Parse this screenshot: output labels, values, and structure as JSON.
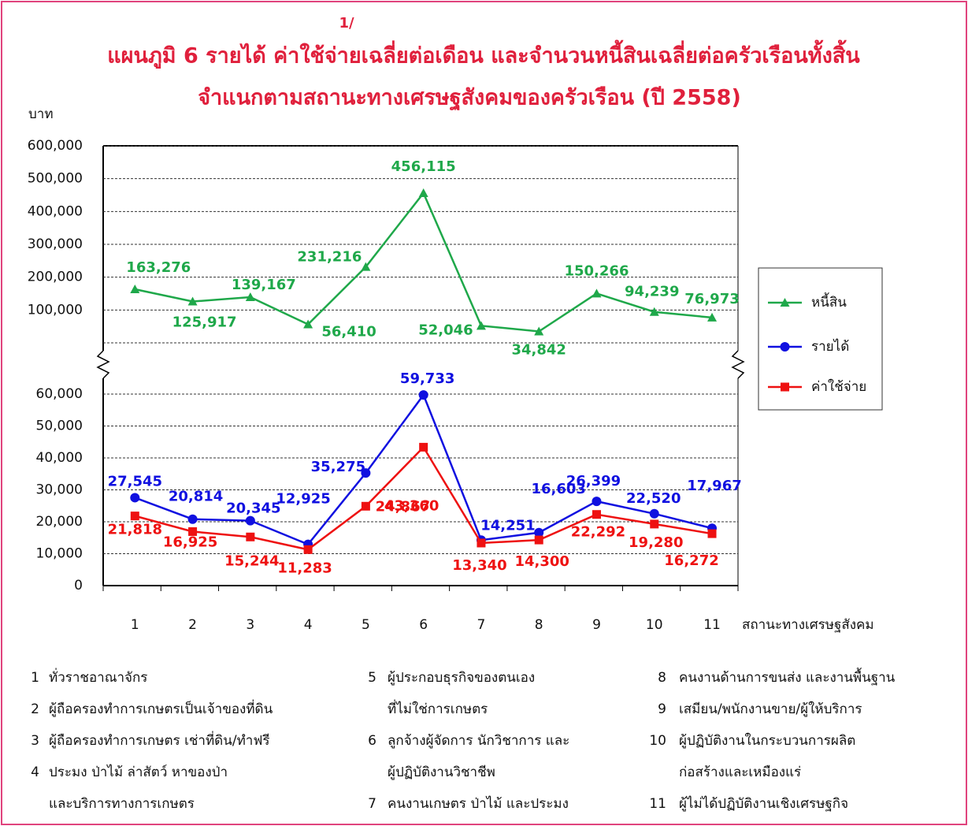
{
  "footnote_mark": "1/",
  "title": [
    "แผนภูมิ  6  รายได้  ค่าใช้จ่ายเฉลี่ยต่อเดือน  และจำนวนหนี้สินเฉลี่ยต่อครัวเรือนทั้งสิ้น",
    "จำแนกตามสถานะทางเศรษฐสังคมของครัวเรือน (ปี 2558)"
  ],
  "y_unit": "บาท",
  "x_label": "สถานะทางเศรษฐสังคม",
  "chart_data": [
    {
      "type": "line",
      "ylim": [
        0,
        600000
      ],
      "yticks": [
        {
          "value": 100000,
          "label": "100,000"
        },
        {
          "value": 200000,
          "label": "200,000"
        },
        {
          "value": 300000,
          "label": "300,000"
        },
        {
          "value": 400000,
          "label": "400,000"
        },
        {
          "value": 500000,
          "label": "500,000"
        },
        {
          "value": 600000,
          "label": "600,000"
        }
      ],
      "grid": true,
      "series": [
        {
          "name": "หนี้สิน",
          "color": "#1fa84a",
          "marker": "triangle",
          "values": [
            163276,
            125917,
            139167,
            56410,
            231216,
            456115,
            52046,
            34842,
            150266,
            94239,
            76973
          ],
          "value_labels": [
            "163,276",
            "125,917",
            "139,167",
            "56,410",
            "231,216",
            "456,115",
            "52,046",
            "34,842",
            "150,266",
            "94,239",
            "76,973"
          ]
        }
      ]
    },
    {
      "type": "line",
      "categories": [
        "1",
        "2",
        "3",
        "4",
        "5",
        "6",
        "7",
        "8",
        "9",
        "10",
        "11"
      ],
      "ylim": [
        0,
        60000
      ],
      "yticks": [
        0,
        {
          "value": 10000,
          "label": "10,000"
        },
        {
          "value": 20000,
          "label": "20,000"
        },
        {
          "value": 30000,
          "label": "30,000"
        },
        {
          "value": 40000,
          "label": "40,000"
        },
        {
          "value": 50000,
          "label": "50,000"
        },
        {
          "value": 60000,
          "label": "60,000"
        }
      ],
      "grid": true,
      "series": [
        {
          "name": "รายได้",
          "color": "#1010e0",
          "marker": "circle",
          "values": [
            27545,
            20814,
            20345,
            12925,
            35275,
            59733,
            14251,
            16603,
            26399,
            22520,
            17967
          ],
          "value_labels": [
            "27,545",
            "20,814",
            "20,345",
            "12,925",
            "35,275",
            "59,733",
            "14,251",
            "16,603",
            "26,399",
            "22,520",
            "17,967"
          ]
        },
        {
          "name": "ค่าใช้จ่าย",
          "color": "#ee1111",
          "marker": "square",
          "values": [
            21818,
            16925,
            15244,
            11283,
            24867,
            43360,
            13340,
            14300,
            22292,
            19280,
            16272
          ],
          "value_labels": [
            "21,818",
            "16,925",
            "15,244",
            "11,283",
            "24,867",
            "43,360",
            "13,340",
            "14,300",
            "22,292",
            "19,280",
            "16,272"
          ]
        }
      ]
    }
  ],
  "notes": [
    {
      "num": "1",
      "lines": [
        "ทั่วราชอาณาจักร"
      ]
    },
    {
      "num": "2",
      "lines": [
        "ผู้ถือครองทำการเกษตรเป็นเจ้าของที่ดิน"
      ]
    },
    {
      "num": "3",
      "lines": [
        "ผู้ถือครองทำการเกษตร เช่าที่ดิน/ทำฟรี"
      ]
    },
    {
      "num": "4",
      "lines": [
        "ประมง ป่าไม้ ล่าสัตว์ หาของป่า",
        "และบริการทางการเกษตร"
      ]
    },
    {
      "num": "5",
      "lines": [
        "ผู้ประกอบธุรกิจของตนเอง",
        "ที่ไม่ใช่การเกษตร"
      ]
    },
    {
      "num": "6",
      "lines": [
        "ลูกจ้างผู้จัดการ นักวิชาการ และ",
        "ผู้ปฏิบัติงานวิชาชีพ"
      ]
    },
    {
      "num": "7",
      "lines": [
        "คนงานเกษตร ป่าไม้ และประมง"
      ]
    },
    {
      "num": "8",
      "lines": [
        "คนงานด้านการขนส่ง และงานพื้นฐาน"
      ]
    },
    {
      "num": "9",
      "lines": [
        "เสมียน/พนักงานขาย/ผู้ให้บริการ"
      ]
    },
    {
      "num": "10",
      "lines": [
        "ผู้ปฏิบัติงานในกระบวนการผลิต",
        "ก่อสร้างและเหมืองแร่"
      ]
    },
    {
      "num": "11",
      "lines": [
        "ผู้ไม่ได้ปฏิบัติงานเชิงเศรษฐกิจ"
      ]
    }
  ]
}
